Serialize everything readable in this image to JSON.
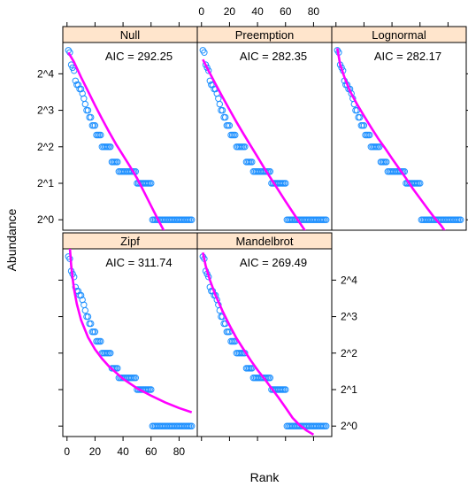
{
  "chart_data": {
    "type": "scatter",
    "xlabel": "Rank",
    "ylabel": "Abundance",
    "x_ticks": [
      0,
      20,
      40,
      60,
      80
    ],
    "y_ticks": [
      {
        "value": 1,
        "label": "2^0"
      },
      {
        "value": 2,
        "label": "2^1"
      },
      {
        "value": 4,
        "label": "2^2"
      },
      {
        "value": 8,
        "label": "2^3"
      },
      {
        "value": 16,
        "label": "2^4"
      }
    ],
    "y_scale": "log2",
    "xlim": [
      -3,
      93
    ],
    "ylim": [
      0.82,
      29
    ],
    "colors": {
      "points": "#1E90FF",
      "fit": "#FF00FF",
      "strip": "#FFE5CC"
    },
    "observed": [
      {
        "rank": 1,
        "abundance": 25
      },
      {
        "rank": 2,
        "abundance": 24
      },
      {
        "rank": 3,
        "abundance": 19
      },
      {
        "rank": 4,
        "abundance": 18
      },
      {
        "rank": 5,
        "abundance": 17
      },
      {
        "rank": 6,
        "abundance": 14
      },
      {
        "rank": 7,
        "abundance": 13
      },
      {
        "rank": 8,
        "abundance": 13
      },
      {
        "rank": 9,
        "abundance": 12
      },
      {
        "rank": 10,
        "abundance": 12
      },
      {
        "rank": 11,
        "abundance": 11
      },
      {
        "rank": 12,
        "abundance": 10
      },
      {
        "rank": 13,
        "abundance": 9
      },
      {
        "rank": 14,
        "abundance": 8
      },
      {
        "rank": 15,
        "abundance": 8
      },
      {
        "rank": 16,
        "abundance": 7
      },
      {
        "rank": 17,
        "abundance": 7
      },
      {
        "rank": 18,
        "abundance": 6
      },
      {
        "rank": 19,
        "abundance": 6
      },
      {
        "rank": 20,
        "abundance": 6
      },
      {
        "rank_from": 21,
        "rank_to": 24,
        "abundance": 5
      },
      {
        "rank_from": 25,
        "rank_to": 31,
        "abundance": 4
      },
      {
        "rank_from": 32,
        "rank_to": 36,
        "abundance": 3
      },
      {
        "rank_from": 37,
        "rank_to": 49,
        "abundance": 2.5
      },
      {
        "rank_from": 50,
        "rank_to": 60,
        "abundance": 2
      },
      {
        "rank_from": 61,
        "rank_to": 89,
        "abundance": 1
      }
    ],
    "panels": [
      {
        "strip": "Null",
        "annotation": "AIC = 292.25",
        "fit": [
          [
            1,
            24
          ],
          [
            5,
            20
          ],
          [
            10,
            15
          ],
          [
            15,
            11.5
          ],
          [
            20,
            8.8
          ],
          [
            25,
            6.8
          ],
          [
            30,
            5.3
          ],
          [
            35,
            4.2
          ],
          [
            40,
            3.4
          ],
          [
            45,
            2.75
          ],
          [
            50,
            2.2
          ],
          [
            55,
            1.7
          ],
          [
            60,
            1.3
          ],
          [
            65,
            1
          ],
          [
            70,
            0.78
          ]
        ]
      },
      {
        "strip": "Preemption",
        "annotation": "AIC = 282.35",
        "fit": [
          [
            1,
            21
          ],
          [
            5,
            17
          ],
          [
            10,
            13.2
          ],
          [
            15,
            10.3
          ],
          [
            20,
            8.1
          ],
          [
            25,
            6.4
          ],
          [
            30,
            5.1
          ],
          [
            35,
            4.1
          ],
          [
            40,
            3.3
          ],
          [
            45,
            2.65
          ],
          [
            50,
            2.15
          ],
          [
            55,
            1.75
          ],
          [
            60,
            1.42
          ],
          [
            65,
            1.16
          ],
          [
            70,
            0.95
          ],
          [
            75,
            0.78
          ]
        ]
      },
      {
        "strip": "Lognormal",
        "annotation": "AIC = 282.17",
        "fit": [
          [
            1,
            26
          ],
          [
            3,
            19
          ],
          [
            6,
            15
          ],
          [
            10,
            11.5
          ],
          [
            15,
            9
          ],
          [
            20,
            7.2
          ],
          [
            25,
            5.8
          ],
          [
            30,
            4.7
          ],
          [
            35,
            3.9
          ],
          [
            40,
            3.2
          ],
          [
            45,
            2.65
          ],
          [
            50,
            2.2
          ],
          [
            55,
            1.8
          ],
          [
            60,
            1.5
          ],
          [
            65,
            1.25
          ],
          [
            70,
            1.05
          ],
          [
            75,
            0.9
          ],
          [
            78,
            0.8
          ]
        ]
      },
      {
        "strip": "Zipf",
        "annotation": "AIC = 311.74",
        "fit": [
          [
            2,
            30
          ],
          [
            3,
            21
          ],
          [
            4,
            16.5
          ],
          [
            5,
            13.5
          ],
          [
            7,
            10.2
          ],
          [
            10,
            7.5
          ],
          [
            15,
            5.4
          ],
          [
            20,
            4.3
          ],
          [
            25,
            3.6
          ],
          [
            30,
            3.1
          ],
          [
            40,
            2.45
          ],
          [
            50,
            2.05
          ],
          [
            60,
            1.78
          ],
          [
            70,
            1.57
          ],
          [
            80,
            1.41
          ],
          [
            89,
            1.3
          ]
        ]
      },
      {
        "strip": "Mandelbrot",
        "annotation": "AIC = 269.49",
        "fit": [
          [
            1,
            27
          ],
          [
            3,
            21
          ],
          [
            6,
            16
          ],
          [
            10,
            12
          ],
          [
            15,
            8.9
          ],
          [
            20,
            6.8
          ],
          [
            25,
            5.3
          ],
          [
            30,
            4.3
          ],
          [
            35,
            3.5
          ],
          [
            40,
            2.9
          ],
          [
            45,
            2.45
          ],
          [
            50,
            2.05
          ],
          [
            55,
            1.72
          ],
          [
            60,
            1.42
          ],
          [
            65,
            1.17
          ],
          [
            70,
            1.02
          ],
          [
            75,
            0.92
          ],
          [
            80,
            0.85
          ]
        ]
      }
    ]
  }
}
